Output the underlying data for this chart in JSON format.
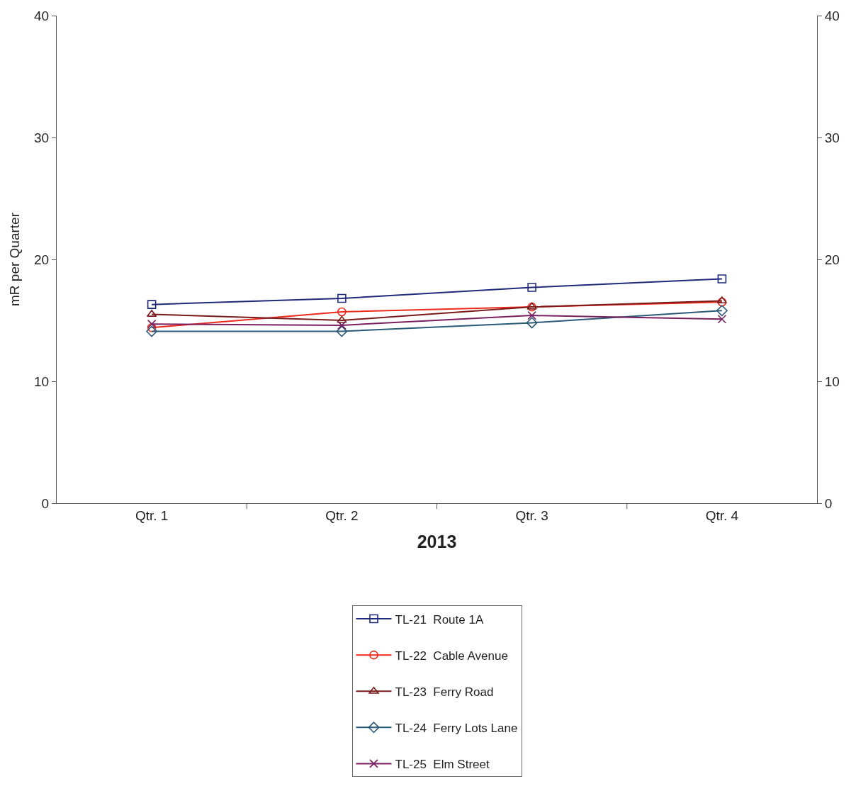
{
  "chart_data": {
    "type": "line",
    "xlabel": "2013",
    "ylabel": "mR per Quarter",
    "categories": [
      "Qtr. 1",
      "Qtr. 2",
      "Qtr. 3",
      "Qtr. 4"
    ],
    "series": [
      {
        "name": "TL-21  Route 1A",
        "color": "#1f2a7a",
        "marker": "square",
        "values": [
          16.3,
          16.8,
          17.7,
          18.4
        ]
      },
      {
        "name": "TL-22  Cable Avenue",
        "color": "#ee2a1c",
        "marker": "circle",
        "values": [
          14.4,
          15.7,
          16.1,
          16.5
        ]
      },
      {
        "name": "TL-23  Ferry Road",
        "color": "#7a1a1a",
        "marker": "triangle",
        "values": [
          15.5,
          15.0,
          16.1,
          16.6
        ]
      },
      {
        "name": "TL-24  Ferry Lots Lane",
        "color": "#2a5a78",
        "marker": "diamond",
        "values": [
          14.1,
          14.1,
          14.8,
          15.8
        ]
      },
      {
        "name": "TL-25  Elm Street",
        "color": "#7a2060",
        "marker": "cross",
        "values": [
          14.7,
          14.6,
          15.4,
          15.1
        ]
      }
    ],
    "ylim": [
      0,
      40
    ],
    "yticks": [
      0,
      10,
      20,
      30,
      40
    ],
    "y2lim": [
      0,
      40
    ],
    "y2ticks": [
      0,
      10,
      20,
      30,
      40
    ],
    "legend": "bottom",
    "line_style": "solid"
  }
}
